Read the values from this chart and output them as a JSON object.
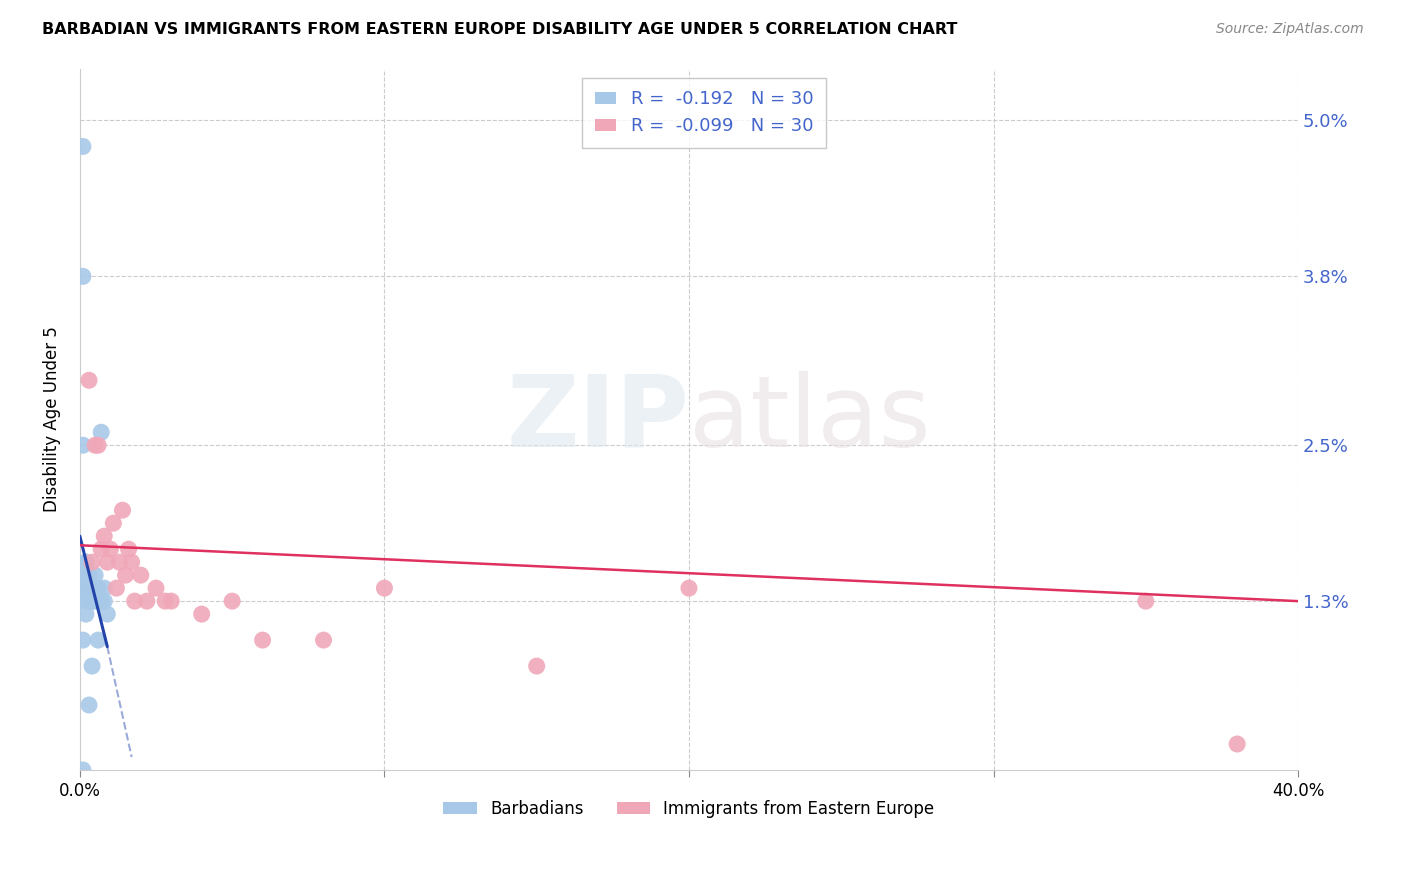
{
  "title": "BARBADIAN VS IMMIGRANTS FROM EASTERN EUROPE DISABILITY AGE UNDER 5 CORRELATION CHART",
  "source": "Source: ZipAtlas.com",
  "ylabel": "Disability Age Under 5",
  "xlim": [
    0.0,
    0.4
  ],
  "ylim": [
    0.0,
    0.054
  ],
  "ytick_vals": [
    0.013,
    0.025,
    0.038,
    0.05
  ],
  "ytick_labels": [
    "1.3%",
    "2.5%",
    "3.8%",
    "5.0%"
  ],
  "xtick_vals": [
    0.0,
    0.1,
    0.2,
    0.3,
    0.4
  ],
  "xtick_labels": [
    "0.0%",
    "",
    "",
    "",
    "40.0%"
  ],
  "legend_R_blue": "-0.192",
  "legend_N_blue": "30",
  "legend_R_pink": "-0.099",
  "legend_N_pink": "30",
  "blue_color": "#a8c8e8",
  "pink_color": "#f0a8b8",
  "trend_blue_color": "#2244aa",
  "trend_pink_color": "#e03060",
  "grid_color": "#cccccc",
  "label_color": "#4466cc",
  "barbadian_x": [
    0.001,
    0.001,
    0.001,
    0.001,
    0.001,
    0.002,
    0.002,
    0.002,
    0.002,
    0.002,
    0.003,
    0.003,
    0.003,
    0.003,
    0.004,
    0.004,
    0.004,
    0.005,
    0.005,
    0.005,
    0.006,
    0.006,
    0.006,
    0.007,
    0.007,
    0.008,
    0.008,
    0.009,
    0.001,
    0.002
  ],
  "barbadian_y": [
    0.048,
    0.038,
    0.025,
    0.014,
    0.01,
    0.016,
    0.015,
    0.014,
    0.013,
    0.012,
    0.015,
    0.014,
    0.013,
    0.005,
    0.014,
    0.013,
    0.008,
    0.015,
    0.014,
    0.013,
    0.014,
    0.013,
    0.01,
    0.026,
    0.013,
    0.014,
    0.013,
    0.012,
    0.0,
    0.016
  ],
  "eastern_x": [
    0.003,
    0.004,
    0.005,
    0.006,
    0.007,
    0.008,
    0.009,
    0.01,
    0.011,
    0.012,
    0.013,
    0.014,
    0.015,
    0.016,
    0.017,
    0.018,
    0.02,
    0.022,
    0.025,
    0.028,
    0.03,
    0.04,
    0.05,
    0.06,
    0.08,
    0.1,
    0.15,
    0.2,
    0.35,
    0.38
  ],
  "eastern_y": [
    0.03,
    0.016,
    0.025,
    0.025,
    0.017,
    0.018,
    0.016,
    0.017,
    0.019,
    0.014,
    0.016,
    0.02,
    0.015,
    0.017,
    0.016,
    0.013,
    0.015,
    0.013,
    0.014,
    0.013,
    0.013,
    0.012,
    0.013,
    0.01,
    0.01,
    0.014,
    0.008,
    0.014,
    0.013,
    0.002
  ],
  "blue_trend_x0": 0.0,
  "blue_trend_y0": 0.018,
  "blue_trend_x1": 0.009,
  "blue_trend_y1": 0.0095,
  "blue_trend_dash_x1": 0.017,
  "blue_trend_dash_y1": 0.001,
  "pink_trend_x0": 0.0,
  "pink_trend_y0": 0.0173,
  "pink_trend_x1": 0.4,
  "pink_trend_y1": 0.013
}
